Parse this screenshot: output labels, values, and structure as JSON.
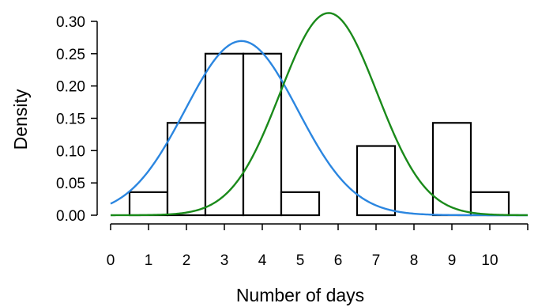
{
  "chart_data": {
    "type": "bar",
    "title": "",
    "xlabel": "Number of days",
    "ylabel": "Density",
    "xlim": [
      0,
      11
    ],
    "ylim": [
      0,
      0.3
    ],
    "grid": false,
    "legend": "none",
    "x_ticks": [
      "0",
      "1",
      "2",
      "3",
      "4",
      "5",
      "6",
      "7",
      "8",
      "9",
      "10"
    ],
    "y_ticks": [
      "0.00",
      "0.05",
      "0.10",
      "0.15",
      "0.20",
      "0.25",
      "0.30"
    ],
    "histogram": {
      "categories": [
        1,
        2,
        3,
        4,
        5,
        6,
        7,
        8,
        9,
        10
      ],
      "values": [
        0.0357,
        0.1429,
        0.25,
        0.25,
        0.0357,
        0,
        0.1071,
        0,
        0.1429,
        0.0357
      ]
    },
    "curves": [
      {
        "color": "#2b86e0",
        "mean": 3.45,
        "sd": 1.48
      },
      {
        "color": "#1a8a1a",
        "mean": 5.75,
        "sd": 1.275
      }
    ]
  }
}
